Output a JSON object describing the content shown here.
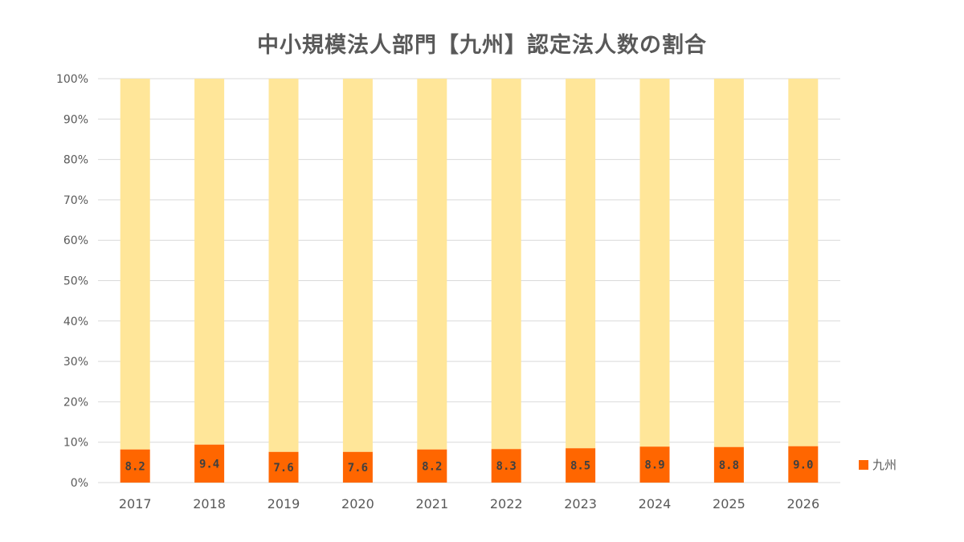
{
  "title": "中小規模法人部門【九州】認定法人数の割合",
  "colors": {
    "series": "#FF6600",
    "remainder": "#FFE699",
    "grid": "#D9D9D9",
    "axis_text": "#595959",
    "label_text": "#404040"
  },
  "chart_data": {
    "type": "bar",
    "stacked": "percent",
    "title": "中小規模法人部門【九州】認定法人数の割合",
    "categories": [
      "2017",
      "2018",
      "2019",
      "2020",
      "2021",
      "2022",
      "2023",
      "2024",
      "2025",
      "2026"
    ],
    "series": [
      {
        "name": "九州",
        "values": [
          8.2,
          9.4,
          7.6,
          7.6,
          8.2,
          8.3,
          8.5,
          8.9,
          8.8,
          9.0
        ],
        "labels": [
          "8.2",
          "9.4",
          "7.6",
          "7.6",
          "8.2",
          "8.3",
          "8.5",
          "8.9",
          "8.8",
          "9.0"
        ]
      }
    ],
    "ylim": [
      0,
      100
    ],
    "y_ticks": [
      "0%",
      "10%",
      "20%",
      "30%",
      "40%",
      "50%",
      "60%",
      "70%",
      "80%",
      "90%",
      "100%"
    ],
    "grid": true,
    "legend_position": "right"
  },
  "legend": {
    "label": "九州"
  }
}
